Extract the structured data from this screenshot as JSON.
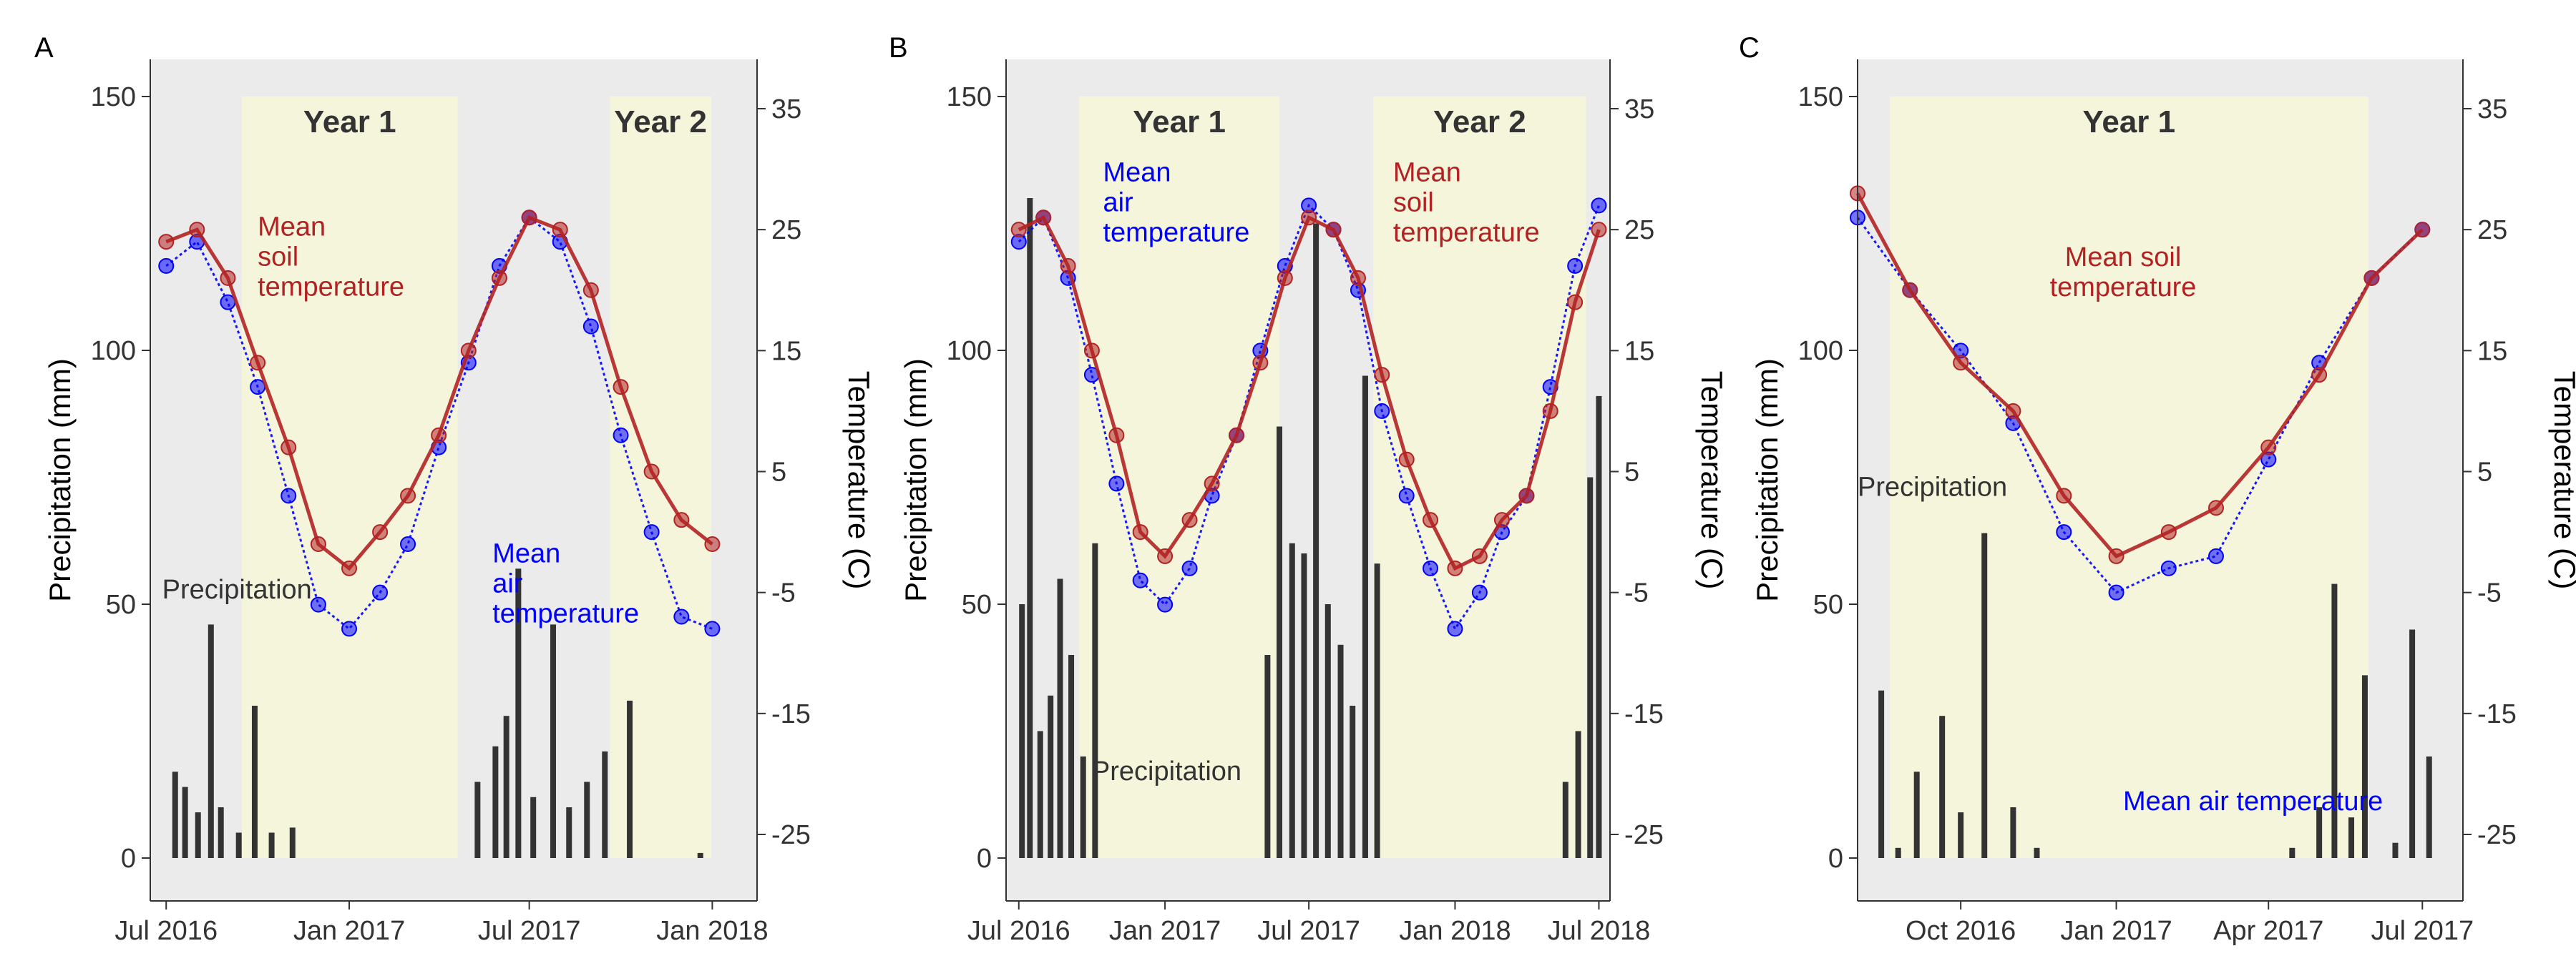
{
  "colors": {
    "panel_bg": "#ebebeb",
    "year_shade": "#f5f5dc",
    "air": "#0000ff",
    "soil": "#b22222",
    "precip": "#333333",
    "text": "#333333"
  },
  "chart_data": [
    {
      "panel_label": "A",
      "type": "line",
      "x_scale": "date",
      "xlim": [
        "2016-06-15",
        "2018-02-15"
      ],
      "x_ticks": [
        "2016-07-01",
        "2017-01-01",
        "2017-07-01",
        "2018-01-01"
      ],
      "x_tick_labels": [
        "Jul 2016",
        "Jan 2017",
        "Jul 2017",
        "Jan 2018"
      ],
      "ylabel": "Precipitation (mm)",
      "ylabel_right": "Temperature (C)",
      "y_left_ticks": [
        0,
        50,
        100,
        150
      ],
      "y_left_range": [
        0,
        150
      ],
      "y_right_ticks": [
        -25,
        -15,
        -5,
        5,
        15,
        25,
        35
      ],
      "y_right_range": [
        -25,
        35
      ],
      "shaded_periods": [
        {
          "label": "Year 1",
          "start": "2016-09-15",
          "end": "2017-04-20"
        },
        {
          "label": "Year 2",
          "start": "2017-09-20",
          "end": "2017-12-31"
        }
      ],
      "annotations": [
        {
          "text": "Mean soil temperature",
          "lines": [
            "Mean",
            "soil",
            "temperature"
          ],
          "color": "soil",
          "x": "2016-10-01",
          "y_temp": 24.5
        },
        {
          "text": "Precipitation",
          "lines": [
            "Precipitation"
          ],
          "color": "text",
          "x": "2016-06-27",
          "y_temp": -5.5
        },
        {
          "text": "Mean air temperature",
          "lines": [
            "Mean",
            "air",
            "temperature"
          ],
          "color": "air",
          "x": "2017-05-25",
          "y_temp": -2.5
        }
      ],
      "series": [
        {
          "name": "Mean air temperature",
          "kind": "air",
          "x": [
            "2016-07-01",
            "2016-08-01",
            "2016-09-01",
            "2016-10-01",
            "2016-11-01",
            "2016-12-01",
            "2017-01-01",
            "2017-02-01",
            "2017-03-01",
            "2017-04-01",
            "2017-05-01",
            "2017-06-01",
            "2017-07-01",
            "2017-08-01",
            "2017-09-01",
            "2017-10-01",
            "2017-11-01",
            "2017-12-01",
            "2018-01-01"
          ],
          "y": [
            22,
            24,
            19,
            12,
            3,
            -6,
            -8,
            -5,
            -1,
            7,
            14,
            22,
            26,
            24,
            17,
            8,
            0,
            -7,
            -8
          ]
        },
        {
          "name": "Mean soil temperature",
          "kind": "soil",
          "x": [
            "2016-07-01",
            "2016-08-01",
            "2016-09-01",
            "2016-10-01",
            "2016-11-01",
            "2016-12-01",
            "2017-01-01",
            "2017-02-01",
            "2017-03-01",
            "2017-04-01",
            "2017-05-01",
            "2017-06-01",
            "2017-07-01",
            "2017-08-01",
            "2017-09-01",
            "2017-10-01",
            "2017-11-01",
            "2017-12-01",
            "2018-01-01"
          ],
          "y": [
            24,
            25,
            21,
            14,
            7,
            -1,
            -3,
            0,
            3,
            8,
            15,
            21,
            26,
            25,
            20,
            12,
            5,
            1,
            -1
          ]
        },
        {
          "name": "Precipitation",
          "kind": "precip",
          "x": [
            "2016-07-10",
            "2016-07-20",
            "2016-08-02",
            "2016-08-15",
            "2016-08-25",
            "2016-09-12",
            "2016-09-28",
            "2016-10-15",
            "2016-11-05",
            "2017-05-10",
            "2017-05-28",
            "2017-06-08",
            "2017-06-20",
            "2017-07-05",
            "2017-07-25",
            "2017-08-10",
            "2017-08-28",
            "2017-09-15",
            "2017-10-10",
            "2017-12-20"
          ],
          "y": [
            17,
            14,
            9,
            46,
            10,
            5,
            30,
            5,
            6,
            15,
            22,
            28,
            57,
            12,
            46,
            10,
            15,
            21,
            31,
            1
          ]
        }
      ]
    },
    {
      "panel_label": "B",
      "type": "line",
      "x_scale": "date",
      "xlim": [
        "2016-06-15",
        "2018-07-15"
      ],
      "x_ticks": [
        "2016-07-01",
        "2017-01-01",
        "2017-07-01",
        "2018-01-01",
        "2018-07-01"
      ],
      "x_tick_labels": [
        "Jul 2016",
        "Jan 2017",
        "Jul 2017",
        "Jan 2018",
        "Jul 2018"
      ],
      "ylabel": "Precipitation (mm)",
      "ylabel_right": "Temperature (C)",
      "y_left_ticks": [
        0,
        50,
        100,
        150
      ],
      "y_left_range": [
        0,
        150
      ],
      "y_right_ticks": [
        -25,
        -15,
        -5,
        5,
        15,
        25,
        35
      ],
      "y_right_range": [
        -25,
        35
      ],
      "shaded_periods": [
        {
          "label": "Year 1",
          "start": "2016-09-15",
          "end": "2017-05-25"
        },
        {
          "label": "Year 2",
          "start": "2017-09-20",
          "end": "2018-06-15"
        }
      ],
      "annotations": [
        {
          "text": "Mean air temperature",
          "lines": [
            "Mean",
            "air",
            "temperature"
          ],
          "color": "air",
          "x": "2016-10-15",
          "y_temp": 29
        },
        {
          "text": "Mean soil temperature",
          "lines": [
            "Mean",
            "soil",
            "temperature"
          ],
          "color": "soil",
          "x": "2017-10-15",
          "y_temp": 29
        },
        {
          "text": "Precipitation",
          "lines": [
            "Precipitation"
          ],
          "color": "text",
          "x": "2016-10-01",
          "y_temp": -20.5
        }
      ],
      "series": [
        {
          "name": "Mean air temperature",
          "kind": "air",
          "x": [
            "2016-07-01",
            "2016-08-01",
            "2016-09-01",
            "2016-10-01",
            "2016-11-01",
            "2016-12-01",
            "2017-01-01",
            "2017-02-01",
            "2017-03-01",
            "2017-04-01",
            "2017-05-01",
            "2017-06-01",
            "2017-07-01",
            "2017-08-01",
            "2017-09-01",
            "2017-10-01",
            "2017-11-01",
            "2017-12-01",
            "2018-01-01",
            "2018-02-01",
            "2018-03-01",
            "2018-04-01",
            "2018-05-01",
            "2018-06-01",
            "2018-07-01"
          ],
          "y": [
            24,
            26,
            21,
            13,
            4,
            -4,
            -6,
            -3,
            3,
            8,
            15,
            22,
            27,
            25,
            20,
            10,
            3,
            -3,
            -8,
            -5,
            0,
            3,
            12,
            22,
            27
          ]
        },
        {
          "name": "Mean soil temperature",
          "kind": "soil",
          "x": [
            "2016-07-01",
            "2016-08-01",
            "2016-09-01",
            "2016-10-01",
            "2016-11-01",
            "2016-12-01",
            "2017-01-01",
            "2017-02-01",
            "2017-03-01",
            "2017-04-01",
            "2017-05-01",
            "2017-06-01",
            "2017-07-01",
            "2017-08-01",
            "2017-09-01",
            "2017-10-01",
            "2017-11-01",
            "2017-12-01",
            "2018-01-01",
            "2018-02-01",
            "2018-03-01",
            "2018-04-01",
            "2018-05-01",
            "2018-06-01",
            "2018-07-01"
          ],
          "y": [
            25,
            26,
            22,
            15,
            8,
            0,
            -2,
            1,
            4,
            8,
            14,
            21,
            26,
            25,
            21,
            13,
            6,
            1,
            -3,
            -2,
            1,
            3,
            10,
            19,
            25
          ]
        },
        {
          "name": "Precipitation",
          "kind": "precip",
          "x": [
            "2016-07-05",
            "2016-07-15",
            "2016-07-28",
            "2016-08-10",
            "2016-08-22",
            "2016-09-05",
            "2016-09-20",
            "2016-10-05",
            "2017-05-10",
            "2017-05-25",
            "2017-06-10",
            "2017-06-25",
            "2017-07-10",
            "2017-07-25",
            "2017-08-10",
            "2017-08-25",
            "2017-09-10",
            "2017-09-25",
            "2018-05-20",
            "2018-06-05",
            "2018-06-20",
            "2018-07-01"
          ],
          "y": [
            50,
            130,
            25,
            32,
            55,
            40,
            20,
            62,
            40,
            85,
            62,
            60,
            125,
            50,
            42,
            30,
            95,
            58,
            15,
            25,
            75,
            91
          ]
        }
      ]
    },
    {
      "panel_label": "C",
      "type": "line",
      "x_scale": "date",
      "xlim": [
        "2016-08-01",
        "2017-07-25"
      ],
      "x_ticks": [
        "2016-10-01",
        "2017-01-01",
        "2017-04-01",
        "2017-07-01"
      ],
      "x_tick_labels": [
        "Oct 2016",
        "Jan 2017",
        "Apr 2017",
        "Jul 2017"
      ],
      "ylabel": "Precipitation (mm)",
      "ylabel_right": "Temperature (C)",
      "y_left_ticks": [
        0,
        50,
        100,
        150
      ],
      "y_left_range": [
        0,
        150
      ],
      "y_right_ticks": [
        -25,
        -15,
        -5,
        5,
        15,
        25,
        35
      ],
      "y_right_range": [
        -25,
        35
      ],
      "shaded_periods": [
        {
          "label": "Year 1",
          "start": "2016-08-20",
          "end": "2017-05-30"
        }
      ],
      "annotations": [
        {
          "text": "Mean soil temperature",
          "lines": [
            "Mean soil",
            "temperature"
          ],
          "color": "soil",
          "x": "2017-01-05",
          "y_temp": 22
        },
        {
          "text": "Precipitation",
          "lines": [
            "Precipitation"
          ],
          "color": "text",
          "x": "2016-08-01",
          "y_temp": 3
        },
        {
          "text": "Mean air temperature",
          "lines": [
            "Mean air temperature"
          ],
          "color": "air",
          "x": "2017-01-05",
          "y_temp": -23
        }
      ],
      "series": [
        {
          "name": "Mean air temperature",
          "kind": "air",
          "x": [
            "2016-08-01",
            "2016-09-01",
            "2016-10-01",
            "2016-11-01",
            "2016-12-01",
            "2017-01-01",
            "2017-02-01",
            "2017-03-01",
            "2017-04-01",
            "2017-05-01",
            "2017-06-01",
            "2017-07-01"
          ],
          "y": [
            26,
            20,
            15,
            9,
            0,
            -5,
            -3,
            -2,
            6,
            14,
            21,
            25
          ]
        },
        {
          "name": "Mean soil temperature",
          "kind": "soil",
          "x": [
            "2016-08-01",
            "2016-09-01",
            "2016-10-01",
            "2016-11-01",
            "2016-12-01",
            "2017-01-01",
            "2017-02-01",
            "2017-03-01",
            "2017-04-01",
            "2017-05-01",
            "2017-06-01",
            "2017-07-01"
          ],
          "y": [
            28,
            20,
            14,
            10,
            3,
            -2,
            0,
            2,
            7,
            13,
            21,
            25
          ]
        },
        {
          "name": "Precipitation",
          "kind": "precip",
          "x": [
            "2016-08-15",
            "2016-08-25",
            "2016-09-05",
            "2016-09-20",
            "2016-10-01",
            "2016-10-15",
            "2016-11-01",
            "2016-11-15",
            "2017-04-15",
            "2017-05-01",
            "2017-05-10",
            "2017-05-20",
            "2017-05-28",
            "2017-06-15",
            "2017-06-25",
            "2017-07-05"
          ],
          "y": [
            33,
            2,
            17,
            28,
            9,
            64,
            10,
            2,
            2,
            10,
            54,
            8,
            36,
            3,
            45,
            20
          ]
        }
      ]
    }
  ]
}
